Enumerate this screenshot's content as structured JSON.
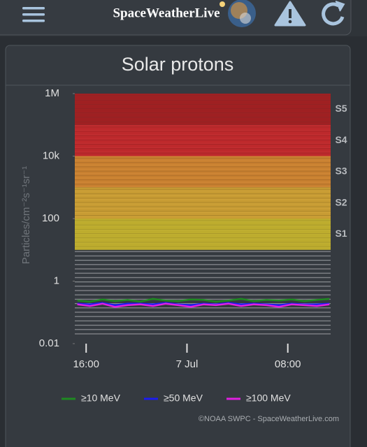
{
  "header": {
    "title": "SpaceWeatherLive"
  },
  "chart_data": {
    "type": "line",
    "title": "Solar protons",
    "y_label": "Particles/cm⁻²s⁻¹sr⁻¹",
    "log_y": true,
    "ylim": [
      0.01,
      1000000
    ],
    "yticks": [
      0.01,
      1,
      100,
      {
        "value": 10000,
        "label": "10k"
      },
      {
        "value": 1000000,
        "label": "1M"
      }
    ],
    "xlim": [
      15.1,
      35.4
    ],
    "xticks": [
      {
        "value": 16,
        "label": "16:00"
      },
      {
        "value": 24,
        "label": "7 Jul"
      },
      {
        "value": 32,
        "label": "08:00"
      }
    ],
    "thresholds": [
      {
        "label": "S1",
        "value": 10,
        "color": "#c9b62c"
      },
      {
        "label": "S2",
        "value": 100,
        "color": "#d4a432"
      },
      {
        "label": "S3",
        "value": 1000,
        "color": "#d5872f"
      },
      {
        "label": "S4",
        "value": 10000,
        "color": "#c9282a"
      },
      {
        "label": "S5",
        "value": 100000,
        "color": "#a81e20"
      }
    ],
    "x": [
      15.3,
      16.3,
      17.3,
      18.3,
      19.3,
      20.3,
      21.3,
      22.3,
      23.3,
      24.3,
      25.3,
      26.3,
      27.3,
      28.3,
      29.3,
      30.3,
      31.3,
      32.3,
      33.3,
      34.3,
      35.3
    ],
    "series": [
      {
        "name": "≥10 MeV",
        "color": "#1f8a22",
        "values": [
          0.24,
          0.22,
          0.26,
          0.23,
          0.25,
          0.22,
          0.27,
          0.24,
          0.23,
          0.26,
          0.25,
          0.22,
          0.24,
          0.27,
          0.23,
          0.25,
          0.24,
          0.26,
          0.23,
          0.25,
          0.27
        ]
      },
      {
        "name": "≥50 MeV",
        "color": "#1c1cf0",
        "values": [
          0.19,
          0.18,
          0.2,
          0.17,
          0.19,
          0.19,
          0.18,
          0.2,
          0.18,
          0.17,
          0.19,
          0.18,
          0.2,
          0.18,
          0.19,
          0.18,
          0.17,
          0.19,
          0.18,
          0.18,
          0.19
        ]
      },
      {
        "name": "≥100 MeV",
        "color": "#e020e0",
        "values": [
          0.18,
          0.16,
          0.19,
          0.15,
          0.17,
          0.18,
          0.16,
          0.19,
          0.17,
          0.15,
          0.18,
          0.17,
          0.19,
          0.16,
          0.18,
          0.17,
          0.15,
          0.18,
          0.17,
          0.16,
          0.18
        ]
      }
    ],
    "credit": "©NOAA SWPC - SpaceWeatherLive.com"
  }
}
